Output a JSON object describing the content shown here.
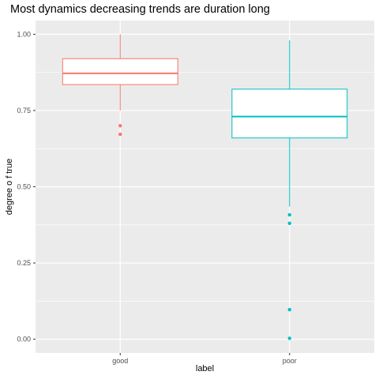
{
  "chart_data": {
    "type": "boxplot",
    "title": "Most dynamics decreasing trends are duration long",
    "xlabel": "label",
    "ylabel": "degree o f true",
    "categories": [
      "good",
      "poor"
    ],
    "ylim": [
      -0.045,
      1.045
    ],
    "y_ticks": [
      {
        "value": 0.0,
        "label": "0.00"
      },
      {
        "value": 0.25,
        "label": "0.25"
      },
      {
        "value": 0.5,
        "label": "0.50"
      },
      {
        "value": 0.75,
        "label": "0.75"
      },
      {
        "value": 1.0,
        "label": "1.00"
      }
    ],
    "grid": true,
    "legend": "none",
    "series": [
      {
        "category": "good",
        "color": "#F8766D",
        "whisker_low": 0.75,
        "q1": 0.835,
        "median": 0.872,
        "q3": 0.92,
        "whisker_high": 1.0,
        "outliers": [
          0.7,
          0.672
        ]
      },
      {
        "category": "poor",
        "color": "#00BFC4",
        "whisker_low": 0.435,
        "q1": 0.66,
        "median": 0.73,
        "q3": 0.82,
        "whisker_high": 0.98,
        "outliers": [
          0.408,
          0.38,
          0.097,
          0.003
        ]
      }
    ]
  }
}
